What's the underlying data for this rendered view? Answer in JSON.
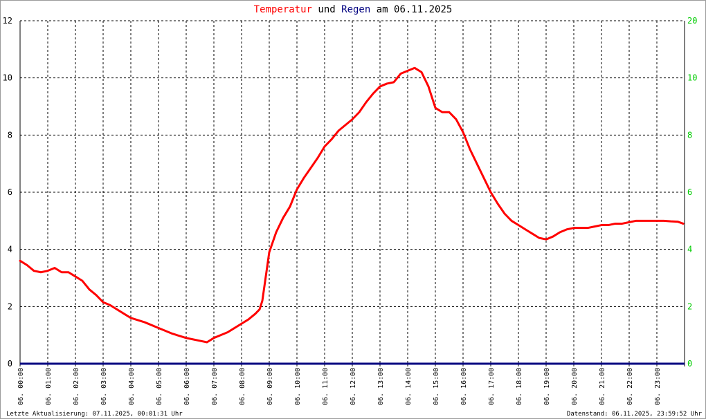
{
  "title": {
    "part1": "Temperatur",
    "part2": "und",
    "part3": "Regen",
    "part4": "am 06.11.2025",
    "color1": "#ff0000",
    "color3": "#000080"
  },
  "footer": {
    "left": "Letzte Aktualisierung: 07.11.2025, 00:01:31 Uhr",
    "right": "Datenstand: 06.11.2025, 23:59:52 Uhr"
  },
  "colors": {
    "temperature": "#ff0000",
    "rain": "#000080",
    "right_axis": "#00cc00",
    "grid": "#000000"
  },
  "chart_data": {
    "type": "line",
    "grid": true,
    "xlim": [
      0,
      24
    ],
    "ylim_left": [
      0,
      12
    ],
    "ylim_right": [
      0,
      20
    ],
    "left_ticks": [
      "0",
      "2",
      "4",
      "6",
      "8",
      "10",
      "12"
    ],
    "right_ticks": [
      "0",
      "2",
      "4",
      "6",
      "8",
      "10",
      "20"
    ],
    "x_tick_labels": [
      "06. 00:00",
      "06. 01:00",
      "06. 02:00",
      "06. 03:00",
      "06. 04:00",
      "06. 05:00",
      "06. 06:00",
      "06. 07:00",
      "06. 08:00",
      "06. 09:00",
      "06. 10:00",
      "06. 11:00",
      "06. 12:00",
      "06. 13:00",
      "06. 14:00",
      "06. 15:00",
      "06. 16:00",
      "06. 17:00",
      "06. 18:00",
      "06. 19:00",
      "06. 20:00",
      "06. 21:00",
      "06. 22:00",
      "06. 23:00"
    ],
    "series": [
      {
        "name": "Temperatur",
        "axis": "left",
        "x": [
          0.0,
          0.25,
          0.5,
          0.75,
          1.0,
          1.25,
          1.5,
          1.75,
          2.0,
          2.25,
          2.5,
          2.75,
          3.0,
          3.25,
          3.5,
          3.75,
          4.0,
          4.5,
          5.0,
          5.5,
          6.0,
          6.25,
          6.5,
          6.75,
          7.0,
          7.25,
          7.5,
          7.75,
          8.0,
          8.25,
          8.5,
          8.65,
          8.75,
          9.0,
          9.25,
          9.5,
          9.75,
          10.0,
          10.25,
          10.5,
          10.75,
          11.0,
          11.25,
          11.5,
          11.75,
          12.0,
          12.25,
          12.5,
          12.75,
          13.0,
          13.25,
          13.5,
          13.75,
          14.0,
          14.25,
          14.5,
          14.75,
          15.0,
          15.25,
          15.5,
          15.75,
          16.0,
          16.25,
          16.5,
          16.75,
          17.0,
          17.25,
          17.5,
          17.75,
          18.0,
          18.25,
          18.5,
          18.75,
          19.0,
          19.25,
          19.5,
          19.75,
          20.0,
          20.25,
          20.5,
          20.75,
          21.0,
          21.25,
          21.5,
          21.75,
          22.0,
          22.25,
          22.5,
          22.75,
          23.0,
          23.25,
          23.5,
          23.75,
          23.95
        ],
        "y": [
          3.6,
          3.45,
          3.25,
          3.2,
          3.25,
          3.35,
          3.2,
          3.2,
          3.05,
          2.9,
          2.6,
          2.4,
          2.15,
          2.05,
          1.9,
          1.75,
          1.6,
          1.45,
          1.25,
          1.05,
          0.9,
          0.85,
          0.8,
          0.75,
          0.9,
          1.0,
          1.1,
          1.25,
          1.4,
          1.55,
          1.75,
          1.9,
          2.2,
          3.9,
          4.6,
          5.1,
          5.5,
          6.1,
          6.5,
          6.85,
          7.2,
          7.6,
          7.85,
          8.15,
          8.35,
          8.55,
          8.8,
          9.15,
          9.45,
          9.7,
          9.8,
          9.85,
          10.15,
          10.25,
          10.35,
          10.2,
          9.7,
          8.95,
          8.8,
          8.8,
          8.55,
          8.1,
          7.5,
          7.0,
          6.5,
          6.0,
          5.6,
          5.25,
          5.0,
          4.85,
          4.7,
          4.55,
          4.4,
          4.35,
          4.45,
          4.6,
          4.7,
          4.75,
          4.75,
          4.75,
          4.8,
          4.85,
          4.85,
          4.9,
          4.9,
          4.95,
          5.0,
          5.0,
          5.0,
          5.0,
          5.0,
          4.98,
          4.97,
          4.9
        ]
      },
      {
        "name": "Regen",
        "axis": "right",
        "x": [
          0,
          24
        ],
        "y": [
          0,
          0
        ]
      }
    ]
  }
}
